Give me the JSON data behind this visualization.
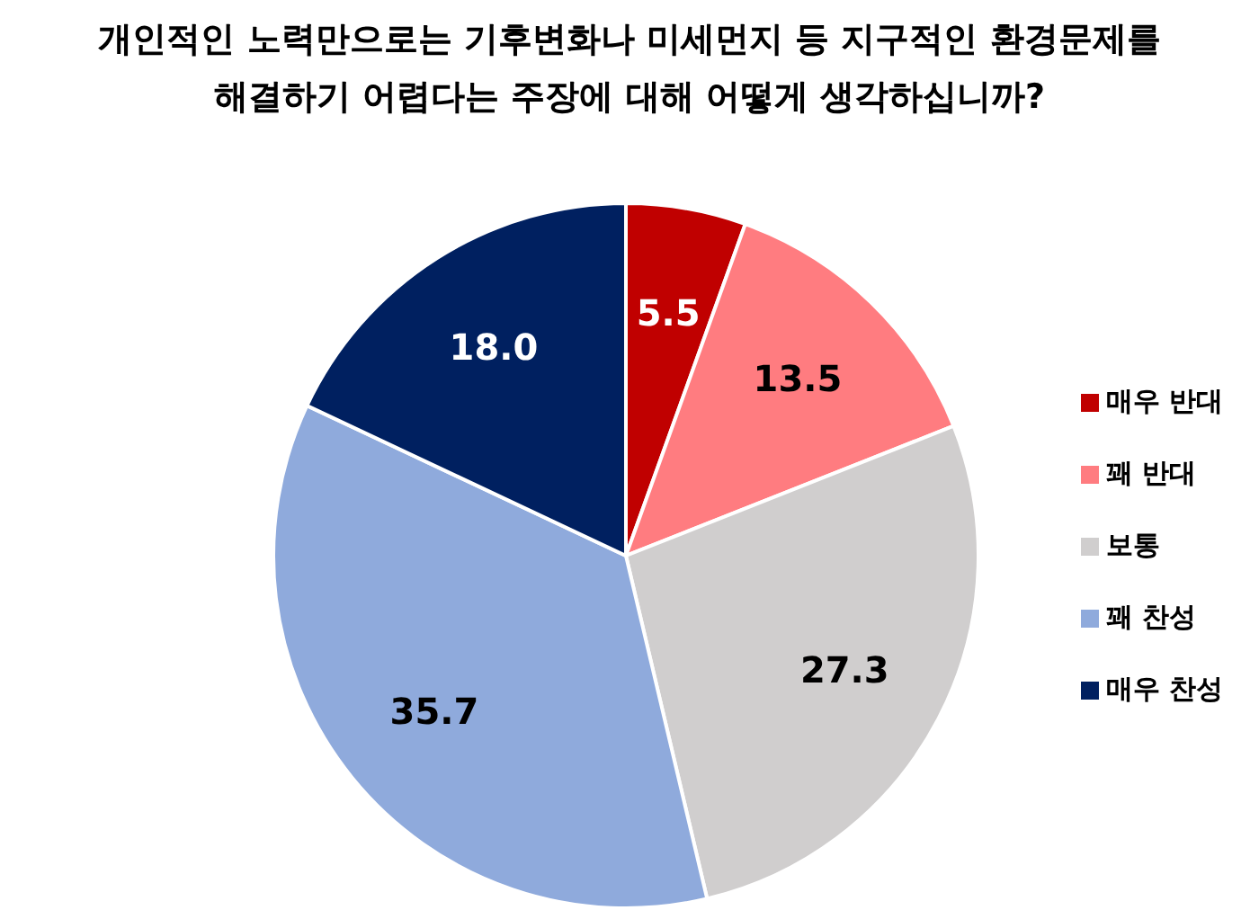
{
  "chart_data": {
    "type": "pie",
    "title": "개인적인 노력만으로는 기후변화나 미세먼지 등 지구적인 환경문제를\n해결하기 어렵다는 주장에 대해 어떻게 생각하십니까?",
    "categories": [
      "매우 반대",
      "꽤 반대",
      "보통",
      "꽤 찬성",
      "매우 찬성"
    ],
    "values": [
      5.5,
      13.5,
      27.3,
      35.7,
      18.0
    ],
    "value_labels": [
      "5.5",
      "13.5",
      "27.3",
      "35.7",
      "18.0"
    ],
    "colors": [
      "#c00000",
      "#ff7c80",
      "#d0cece",
      "#8faadc",
      "#002060"
    ],
    "legend": "right"
  }
}
